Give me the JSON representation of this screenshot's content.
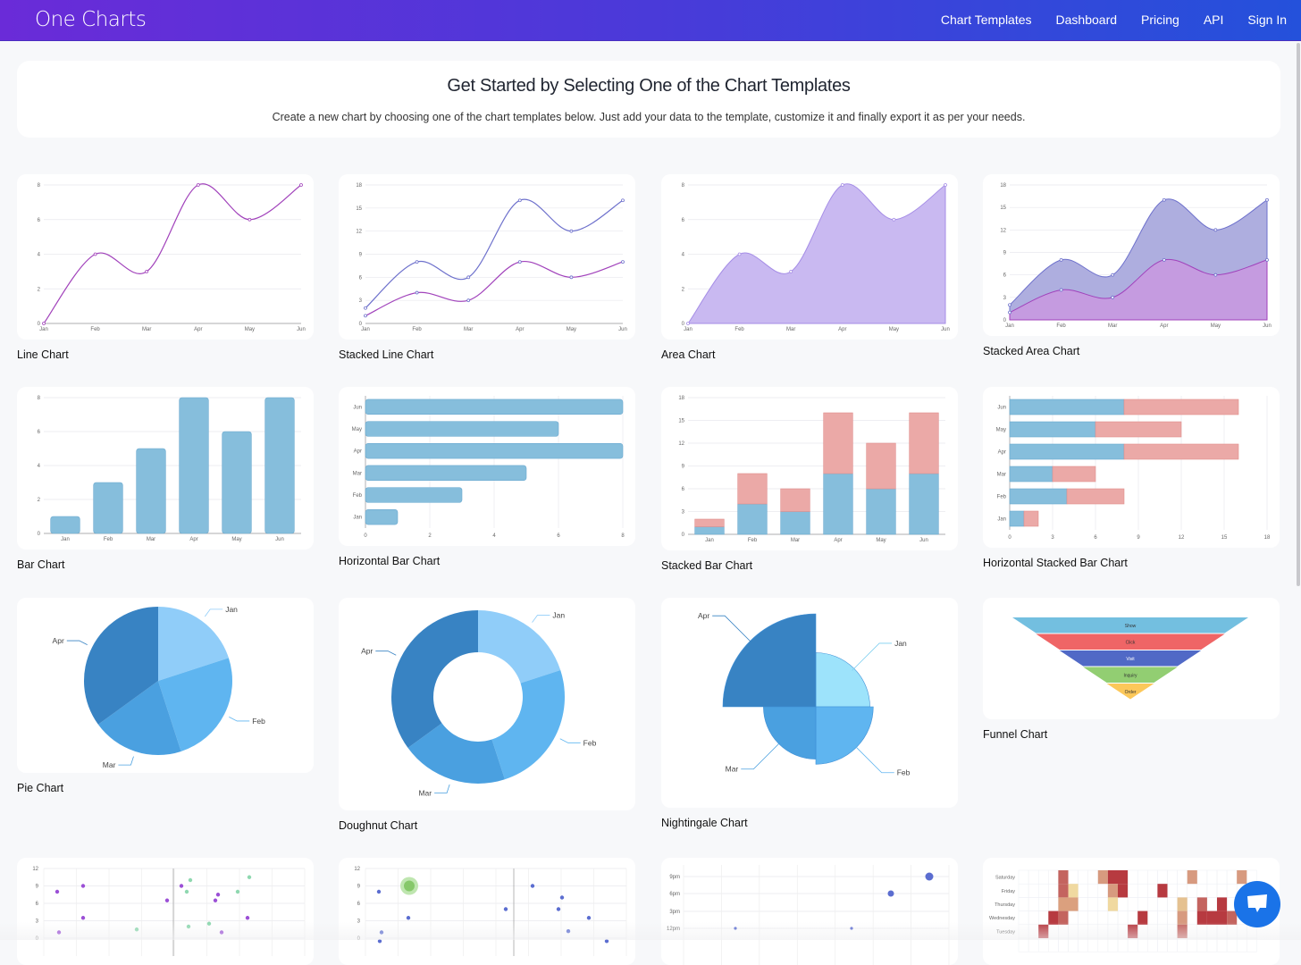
{
  "header": {
    "logo": "One Charts",
    "nav": [
      "Chart Templates",
      "Dashboard",
      "Pricing",
      "API",
      "Sign In"
    ]
  },
  "hero": {
    "title": "Get Started by Selecting One of the Chart Templates",
    "subtitle": "Create a new chart by choosing one of the chart templates below. Just add your data to the template, customize it and finally export it as per your needs."
  },
  "colors": {
    "purple": "#a142bb",
    "indigo": "#6e71cc",
    "area": "#c9b9f1",
    "bar": "#86bedc",
    "bar_red": "#eba9a7",
    "pie": [
      "#90cdf9",
      "#5fb5f0",
      "#4aa0e0",
      "#3883c3"
    ],
    "chat": "#1a73e8"
  },
  "months": [
    "Jan",
    "Feb",
    "Mar",
    "Apr",
    "May",
    "Jun"
  ],
  "templates": [
    {
      "name": "Line Chart",
      "kind": "line",
      "values": [
        0,
        4,
        3,
        8,
        6,
        8
      ],
      "ticks": [
        0,
        2,
        4,
        6,
        8
      ]
    },
    {
      "name": "Stacked Line Chart",
      "kind": "stackline",
      "values": [
        1,
        4,
        3,
        8,
        6,
        8
      ],
      "values2": [
        1,
        4,
        3,
        8,
        6,
        8
      ],
      "ticks": [
        0,
        3,
        6,
        9,
        12,
        15,
        18
      ]
    },
    {
      "name": "Area Chart",
      "kind": "area",
      "values": [
        0,
        4,
        3,
        8,
        6,
        8
      ],
      "ticks": [
        0,
        2,
        4,
        6,
        8
      ]
    },
    {
      "name": "Stacked Area Chart",
      "kind": "stackarea",
      "values": [
        1,
        4,
        3,
        8,
        6,
        8
      ],
      "values2": [
        1,
        4,
        3,
        8,
        6,
        8
      ],
      "ticks": [
        0,
        3,
        6,
        9,
        12,
        15,
        18
      ]
    },
    {
      "name": "Bar Chart",
      "kind": "bar",
      "values": [
        1,
        3,
        5,
        8,
        6,
        8
      ],
      "ticks": [
        0,
        2,
        4,
        6,
        8
      ]
    },
    {
      "name": "Horizontal Bar Chart",
      "kind": "hbar",
      "values": [
        1,
        3,
        5,
        8,
        6,
        8
      ],
      "ticks": [
        0,
        2,
        4,
        6,
        8
      ]
    },
    {
      "name": "Stacked Bar Chart",
      "kind": "stackbar",
      "values": [
        1,
        4,
        3,
        8,
        6,
        8
      ],
      "values2": [
        1,
        4,
        3,
        8,
        6,
        8
      ],
      "ticks": [
        0,
        3,
        6,
        9,
        12,
        15,
        18
      ]
    },
    {
      "name": "Horizontal Stacked Bar Chart",
      "kind": "hstackbar",
      "values": [
        1,
        4,
        3,
        8,
        6,
        8
      ],
      "values2": [
        1,
        4,
        3,
        8,
        6,
        8
      ],
      "ticks": [
        0,
        3,
        6,
        9,
        12,
        15,
        18
      ]
    },
    {
      "name": "Pie Chart",
      "kind": "pie",
      "labels": [
        "Jan",
        "Feb",
        "Mar",
        "Apr"
      ],
      "values": [
        20,
        25,
        20,
        35
      ]
    },
    {
      "name": "Doughnut Chart",
      "kind": "doughnut",
      "labels": [
        "Jan",
        "Feb",
        "Mar",
        "Apr"
      ],
      "values": [
        20,
        25,
        20,
        35
      ]
    },
    {
      "name": "Nightingale Chart",
      "kind": "rose",
      "labels": [
        "Jan",
        "Feb",
        "Mar",
        "Apr"
      ],
      "values": [
        3.2,
        3.4,
        3.1,
        5.5
      ]
    },
    {
      "name": "Funnel Chart",
      "kind": "funnel",
      "labels": [
        "Show",
        "Click",
        "Visit",
        "Inquiry",
        "Order"
      ],
      "values": [
        100,
        80,
        60,
        40,
        20
      ]
    },
    {
      "name": "",
      "kind": "scatter",
      "ticks": [
        0,
        3,
        6,
        9,
        12
      ]
    },
    {
      "name": "",
      "kind": "bubble",
      "ticks": [
        0,
        3,
        6,
        9,
        12
      ]
    },
    {
      "name": "",
      "kind": "punch",
      "ticks": [
        "12pm",
        "3pm",
        "6pm",
        "9pm"
      ]
    },
    {
      "name": "",
      "kind": "heatmap",
      "ticks": [
        "Tuesday",
        "Wednesday",
        "Thursday",
        "Friday",
        "Saturday"
      ]
    }
  ]
}
